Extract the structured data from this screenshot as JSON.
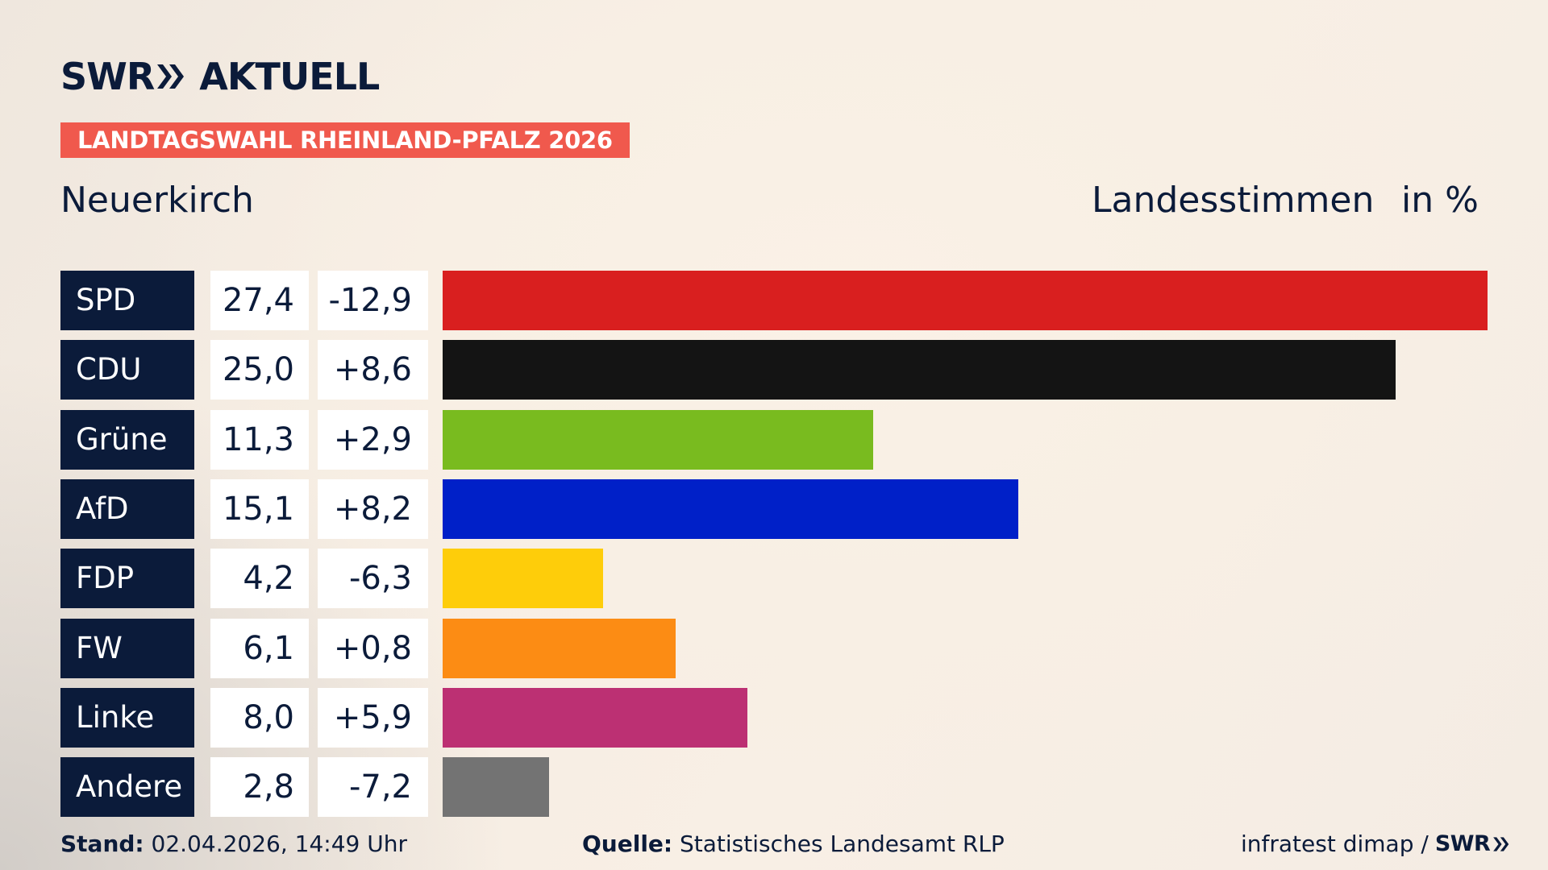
{
  "brand": {
    "name": "SWR",
    "product": "AKTUELL"
  },
  "badge": "LANDTAGSWAHL RHEINLAND-PFALZ 2026",
  "header": {
    "place": "Neuerkirch",
    "measure": "Landesstimmen",
    "unit": "in %"
  },
  "chart_data": {
    "type": "bar",
    "orientation": "horizontal",
    "categories": [
      "SPD",
      "CDU",
      "Grüne",
      "AfD",
      "FDP",
      "FW",
      "Linke",
      "Andere"
    ],
    "values": [
      27.4,
      25.0,
      11.3,
      15.1,
      4.2,
      6.1,
      8.0,
      2.8
    ],
    "value_labels": [
      "27,4",
      "25,0",
      "11,3",
      "15,1",
      "4,2",
      "6,1",
      "8,0",
      "2,8"
    ],
    "change": [
      -12.9,
      8.6,
      2.9,
      8.2,
      -6.3,
      0.8,
      5.9,
      -7.2
    ],
    "change_labels": [
      "-12,9",
      "+8,6",
      "+2,9",
      "+8,2",
      "-6,3",
      "+0,8",
      "+5,9",
      "-7,2"
    ],
    "colors": [
      "#d91f1f",
      "#141414",
      "#79bb1f",
      "#0020c8",
      "#fecd0a",
      "#fc8c14",
      "#bc3073",
      "#737373"
    ],
    "grid": false
  },
  "footer": {
    "stand_label": "Stand:",
    "stand_value": "02.04.2026, 14:49 Uhr",
    "source_label": "Quelle:",
    "source_value": "Statistisches Landesamt RLP",
    "credit": "infratest dimap /",
    "credit_brand": "SWR"
  }
}
